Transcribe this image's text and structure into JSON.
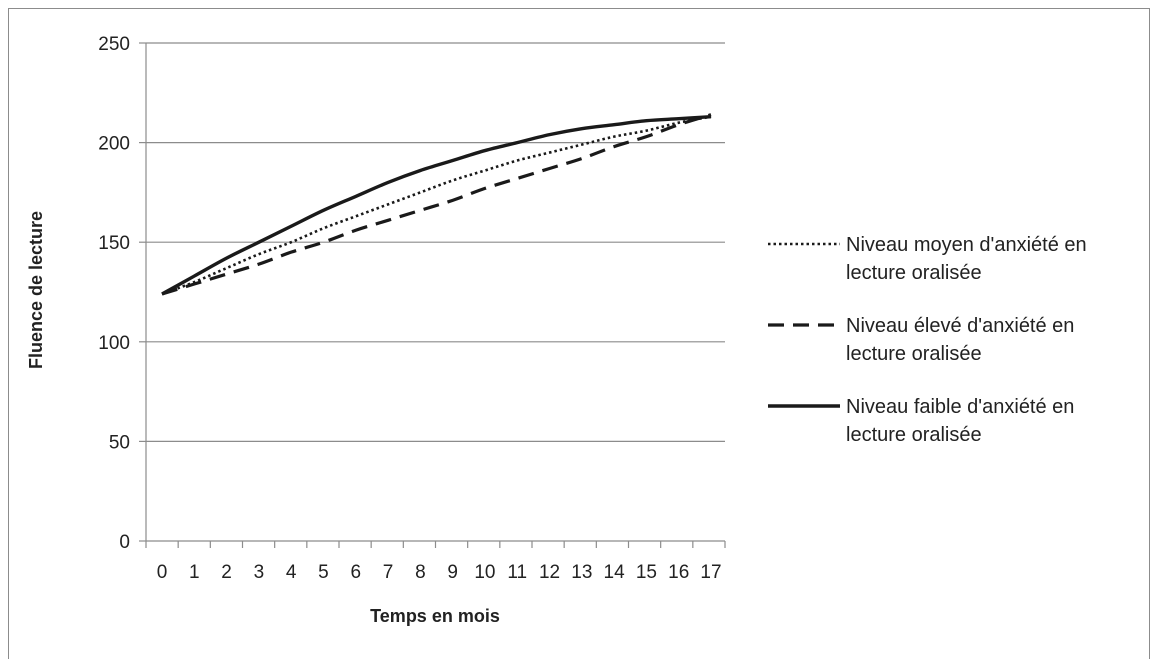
{
  "chart_data": {
    "type": "line",
    "title": "",
    "xlabel": "Temps en mois",
    "ylabel": "Fluence de lecture",
    "ylim": [
      0,
      250
    ],
    "xlim": [
      0,
      17
    ],
    "yticks": [
      "0",
      "50",
      "100",
      "150",
      "200",
      "250"
    ],
    "x": [
      0,
      1,
      2,
      3,
      4,
      5,
      6,
      7,
      8,
      9,
      10,
      11,
      12,
      13,
      14,
      15,
      16,
      17
    ],
    "grid": true,
    "legend": "right",
    "series": [
      {
        "name": "Niveau moyen d'anxiété en lecture oralisée",
        "style": "dotted",
        "values": [
          124,
          130,
          137,
          144,
          150,
          157,
          163,
          169,
          175,
          181,
          186,
          191,
          195,
          199,
          203,
          206,
          210,
          213
        ]
      },
      {
        "name": "Niveau élevé d'anxiété en lecture oralisée",
        "style": "dashed",
        "values": [
          124,
          129,
          134,
          139,
          145,
          150,
          156,
          161,
          166,
          171,
          177,
          182,
          187,
          192,
          198,
          203,
          209,
          214
        ]
      },
      {
        "name": "Niveau faible d'anxiété en lecture oralisée",
        "style": "solid",
        "values": [
          124,
          133,
          142,
          150,
          158,
          166,
          173,
          180,
          186,
          191,
          196,
          200,
          204,
          207,
          209,
          211,
          212,
          213
        ]
      }
    ],
    "colors": {
      "line": "#1a1a1a",
      "grid": "#8c8c8c",
      "axis": "#8c8c8c"
    }
  }
}
